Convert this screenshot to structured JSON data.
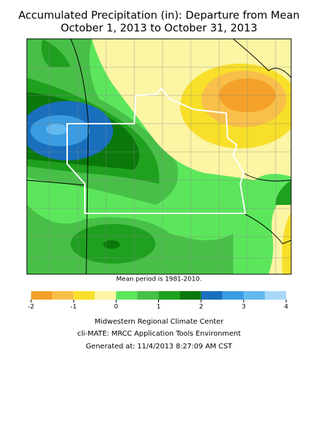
{
  "title": [
    "Accumulated Precipitation (in): Departure from Mean",
    "October 1, 2013 to October 31, 2013"
  ],
  "note": "Mean period is 1981-2010.",
  "legend": {
    "bins": [
      -2,
      -1.5,
      -1,
      -0.5,
      0,
      0.5,
      1,
      1.5,
      2,
      2.5,
      3,
      3.5,
      4
    ],
    "colors": [
      "#f4a12a",
      "#f8bf4a",
      "#f8df2a",
      "#fbf5a4",
      "#5ce65c",
      "#48c048",
      "#1fa01f",
      "#0a780a",
      "#1a6fbd",
      "#3a9be0",
      "#62b9f0",
      "#a8d8f8"
    ],
    "ticks": [
      -2,
      -1,
      0,
      1,
      2,
      3,
      4
    ]
  },
  "footer": [
    "Midwestern Regional Climate Center",
    "cli-MATE: MRCC Application Tools Environment",
    "Generated at: 11/4/2013 8:27:09 AM CST"
  ]
}
